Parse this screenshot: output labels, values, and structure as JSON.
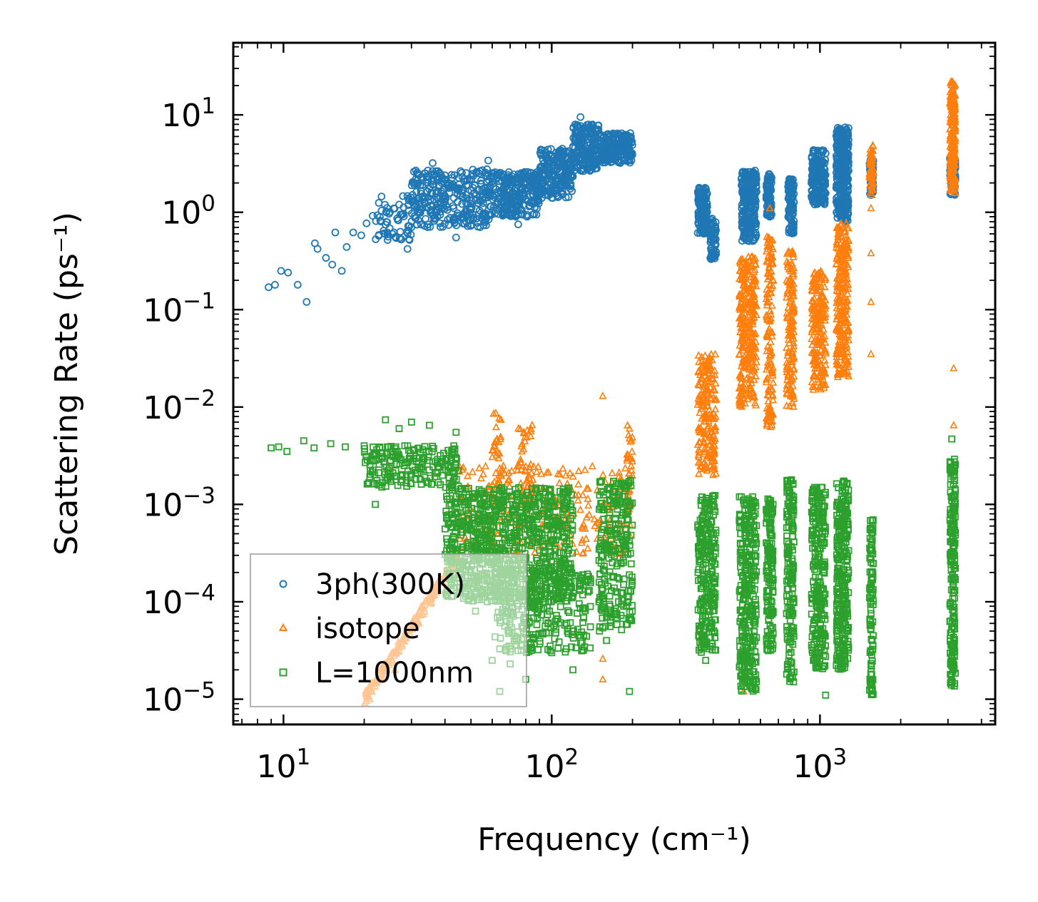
{
  "chart_data": {
    "type": "scatter",
    "title": "",
    "xlabel": "Frequency (cm⁻¹)",
    "ylabel": "Scattering Rate (ps⁻¹)",
    "xscale": "log",
    "yscale": "log",
    "xlim": [
      6.5,
      4500
    ],
    "ylim": [
      5.5e-06,
      55
    ],
    "x_ticks": [
      {
        "value": 10,
        "base": "10",
        "exp": "1"
      },
      {
        "value": 100,
        "base": "10",
        "exp": "2"
      },
      {
        "value": 1000,
        "base": "10",
        "exp": "3"
      }
    ],
    "y_ticks": [
      {
        "value": 1e-05,
        "base": "10",
        "exp": "−5"
      },
      {
        "value": 0.0001,
        "base": "10",
        "exp": "−4"
      },
      {
        "value": 0.001,
        "base": "10",
        "exp": "−3"
      },
      {
        "value": 0.01,
        "base": "10",
        "exp": "−2"
      },
      {
        "value": 0.1,
        "base": "10",
        "exp": "−1"
      },
      {
        "value": 1,
        "base": "10",
        "exp": "0"
      },
      {
        "value": 10,
        "base": "10",
        "exp": "1"
      }
    ],
    "legend_position": "lower-left",
    "series": [
      {
        "name": "3ph(300K)",
        "marker": "circle",
        "color": "#1f77b4",
        "description": "anharmonic three-phonon scattering rates at 300K",
        "points": [
          [
            8.8,
            0.17
          ],
          [
            9.3,
            0.18
          ],
          [
            9.8,
            0.25
          ],
          [
            10.4,
            0.24
          ],
          [
            11.3,
            0.18
          ],
          [
            12.2,
            0.12
          ],
          [
            13.1,
            0.48
          ],
          [
            13.4,
            0.42
          ],
          [
            14.4,
            0.34
          ],
          [
            15.2,
            0.29
          ],
          [
            15.6,
            0.62
          ],
          [
            16.5,
            0.25
          ],
          [
            17.2,
            0.44
          ],
          [
            18.2,
            0.62
          ],
          [
            19.5,
            0.58
          ],
          [
            20.4,
            0.77
          ],
          [
            21.5,
            0.92
          ],
          [
            23.2,
            1.45
          ],
          [
            25.5,
            0.6
          ],
          [
            27.0,
            1.2
          ],
          [
            29.0,
            0.42
          ],
          [
            33.0,
            2.3
          ],
          [
            36.0,
            3.2
          ],
          [
            40.0,
            2.4
          ],
          [
            44.0,
            0.55
          ],
          [
            48.0,
            1.5
          ],
          [
            58.0,
            3.4
          ],
          [
            75.0,
            0.75
          ],
          [
            88.0,
            1.6
          ],
          [
            110.0,
            3.1
          ],
          [
            128.0,
            9.5
          ],
          [
            145.0,
            6.0
          ],
          [
            170.0,
            3.5
          ],
          [
            195.0,
            4.2
          ]
        ],
        "clusters": [
          {
            "x_min": 22,
            "x_max": 30,
            "y_min": 0.5,
            "y_max": 1.5,
            "n": 60
          },
          {
            "x_min": 30,
            "x_max": 60,
            "y_min": 0.7,
            "y_max": 2.8,
            "n": 320
          },
          {
            "x_min": 60,
            "x_max": 90,
            "y_min": 0.9,
            "y_max": 2.6,
            "n": 260
          },
          {
            "x_min": 90,
            "x_max": 120,
            "y_min": 1.4,
            "y_max": 4.5,
            "n": 220
          },
          {
            "x_min": 120,
            "x_max": 150,
            "y_min": 2.6,
            "y_max": 8.0,
            "n": 200
          },
          {
            "x_min": 150,
            "x_max": 200,
            "y_min": 3.2,
            "y_max": 6.5,
            "n": 200
          },
          {
            "x_min": 350,
            "x_max": 380,
            "y_min": 0.6,
            "y_max": 1.8,
            "n": 160
          },
          {
            "x_min": 390,
            "x_max": 410,
            "y_min": 0.33,
            "y_max": 0.9,
            "n": 60
          },
          {
            "x_min": 510,
            "x_max": 580,
            "y_min": 0.5,
            "y_max": 2.7,
            "n": 240
          },
          {
            "x_min": 630,
            "x_max": 660,
            "y_min": 0.9,
            "y_max": 2.5,
            "n": 80
          },
          {
            "x_min": 760,
            "x_max": 800,
            "y_min": 0.6,
            "y_max": 2.2,
            "n": 100
          },
          {
            "x_min": 930,
            "x_max": 1050,
            "y_min": 1.2,
            "y_max": 4.4,
            "n": 200
          },
          {
            "x_min": 1150,
            "x_max": 1280,
            "y_min": 0.8,
            "y_max": 7.5,
            "n": 300
          },
          {
            "x_min": 1530,
            "x_max": 1580,
            "y_min": 1.5,
            "y_max": 3.5,
            "n": 60
          },
          {
            "x_min": 3050,
            "x_max": 3200,
            "y_min": 1.5,
            "y_max": 4.0,
            "n": 80
          }
        ]
      },
      {
        "name": "isotope",
        "marker": "triangle",
        "color": "#ff7f0e",
        "description": "isotope scattering rates",
        "points": [
          [
            21.0,
            1e-05
          ],
          [
            26.0,
            2e-05
          ],
          [
            32.0,
            6e-05
          ],
          [
            38.0,
            0.00013
          ],
          [
            45.0,
            0.00028
          ],
          [
            155.0,
            0.013
          ],
          [
            195.0,
            0.006
          ],
          [
            650.0,
            1.1
          ],
          [
            1550.0,
            1.1
          ],
          [
            1550.0,
            0.38
          ],
          [
            1550.0,
            0.12
          ],
          [
            1550.0,
            0.035
          ],
          [
            3150.0,
            0.025
          ],
          [
            3150.0,
            0.0065
          ],
          [
            155.0,
            2.6e-05
          ],
          [
            155.0,
            1.6e-05
          ],
          [
            520.0,
            1.2e-05
          ]
        ],
        "clusters": [
          {
            "x_min": 20,
            "x_max": 45,
            "y_min": 1e-05,
            "y_max": 0.0003,
            "n": 180,
            "trend": "rising"
          },
          {
            "x_min": 45,
            "x_max": 200,
            "y_min": 0.0003,
            "y_max": 0.0025,
            "n": 280
          },
          {
            "x_min": 60,
            "x_max": 65,
            "y_min": 0.001,
            "y_max": 0.009,
            "n": 40
          },
          {
            "x_min": 75,
            "x_max": 85,
            "y_min": 0.001,
            "y_max": 0.0075,
            "n": 40
          },
          {
            "x_min": 190,
            "x_max": 200,
            "y_min": 0.001,
            "y_max": 0.0065,
            "n": 30
          },
          {
            "x_min": 350,
            "x_max": 410,
            "y_min": 0.002,
            "y_max": 0.035,
            "n": 200
          },
          {
            "x_min": 500,
            "x_max": 580,
            "y_min": 0.01,
            "y_max": 0.35,
            "n": 300
          },
          {
            "x_min": 630,
            "x_max": 670,
            "y_min": 0.006,
            "y_max": 0.6,
            "n": 140
          },
          {
            "x_min": 750,
            "x_max": 800,
            "y_min": 0.01,
            "y_max": 0.4,
            "n": 140
          },
          {
            "x_min": 930,
            "x_max": 1050,
            "y_min": 0.015,
            "y_max": 0.25,
            "n": 200
          },
          {
            "x_min": 1150,
            "x_max": 1280,
            "y_min": 0.02,
            "y_max": 0.8,
            "n": 260
          },
          {
            "x_min": 1530,
            "x_max": 1580,
            "y_min": 1.5,
            "y_max": 5.0,
            "n": 60
          },
          {
            "x_min": 3050,
            "x_max": 3200,
            "y_min": 1.5,
            "y_max": 22.0,
            "n": 220
          }
        ]
      },
      {
        "name": "L=1000nm",
        "marker": "square",
        "color": "#2ca02c",
        "description": "boundary scattering rates with L=1000nm",
        "points": [
          [
            9.0,
            0.0038
          ],
          [
            9.6,
            0.0039
          ],
          [
            10.3,
            0.0035
          ],
          [
            11.9,
            0.0045
          ],
          [
            13.0,
            0.0038
          ],
          [
            15.0,
            0.0042
          ],
          [
            17.0,
            0.0039
          ],
          [
            20.0,
            0.004
          ],
          [
            22.0,
            0.001
          ],
          [
            24.0,
            0.0074
          ],
          [
            27.0,
            0.006
          ],
          [
            30.0,
            0.007
          ],
          [
            35.0,
            0.0065
          ],
          [
            44.0,
            0.0055
          ],
          [
            48.0,
            0.00012
          ],
          [
            52.0,
            8e-05
          ],
          [
            60.0,
            2.5e-05
          ],
          [
            64.0,
            1.2e-05
          ],
          [
            70.0,
            2.3e-05
          ],
          [
            80.0,
            1.6e-05
          ],
          [
            100.0,
            3e-05
          ],
          [
            120.0,
            2e-05
          ],
          [
            150.0,
            0.0001
          ],
          [
            160.0,
            4e-05
          ],
          [
            195.0,
            1.2e-05
          ],
          [
            375.0,
            2.5e-05
          ],
          [
            1050.0,
            1.1e-05
          ],
          [
            3100.0,
            0.0047
          ]
        ],
        "clusters": [
          {
            "x_min": 20,
            "x_max": 45,
            "y_min": 0.0015,
            "y_max": 0.004,
            "n": 200
          },
          {
            "x_min": 40,
            "x_max": 120,
            "y_min": 0.0001,
            "y_max": 0.0015,
            "n": 900
          },
          {
            "x_min": 60,
            "x_max": 140,
            "y_min": 3e-05,
            "y_max": 0.0002,
            "n": 300
          },
          {
            "x_min": 150,
            "x_max": 200,
            "y_min": 5e-05,
            "y_max": 0.0018,
            "n": 250
          },
          {
            "x_min": 350,
            "x_max": 410,
            "y_min": 3e-05,
            "y_max": 0.0013,
            "n": 250
          },
          {
            "x_min": 500,
            "x_max": 580,
            "y_min": 1.2e-05,
            "y_max": 0.0012,
            "n": 300
          },
          {
            "x_min": 630,
            "x_max": 670,
            "y_min": 3e-05,
            "y_max": 0.0012,
            "n": 140
          },
          {
            "x_min": 750,
            "x_max": 800,
            "y_min": 1.5e-05,
            "y_max": 0.0018,
            "n": 160
          },
          {
            "x_min": 930,
            "x_max": 1050,
            "y_min": 2e-05,
            "y_max": 0.0015,
            "n": 240
          },
          {
            "x_min": 1150,
            "x_max": 1280,
            "y_min": 2e-05,
            "y_max": 0.0018,
            "n": 280
          },
          {
            "x_min": 1530,
            "x_max": 1580,
            "y_min": 1.1e-05,
            "y_max": 0.0007,
            "n": 100
          },
          {
            "x_min": 3050,
            "x_max": 3200,
            "y_min": 1.3e-05,
            "y_max": 0.003,
            "n": 200
          }
        ]
      }
    ]
  }
}
